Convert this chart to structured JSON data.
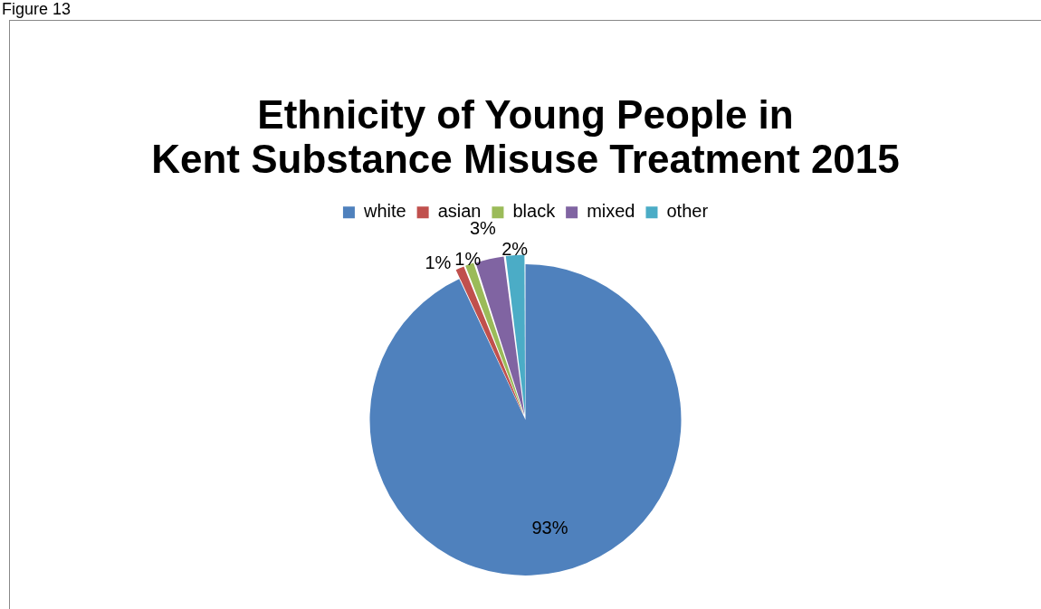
{
  "chart_data": {
    "type": "pie",
    "title": "Ethnicity of Young People in Kent Substance Misuse Treatment 2015",
    "annotations": [
      "Figure 13"
    ],
    "categories": [
      "white",
      "asian",
      "black",
      "mixed",
      "other"
    ],
    "values": [
      93,
      1,
      1,
      3,
      2
    ],
    "colors": [
      "#4f81bd",
      "#c0504d",
      "#9bbb59",
      "#8064a2",
      "#4bacc6"
    ],
    "value_labels": [
      "93%",
      "1%",
      "1%",
      "3%",
      "2%"
    ],
    "legend": "top"
  }
}
